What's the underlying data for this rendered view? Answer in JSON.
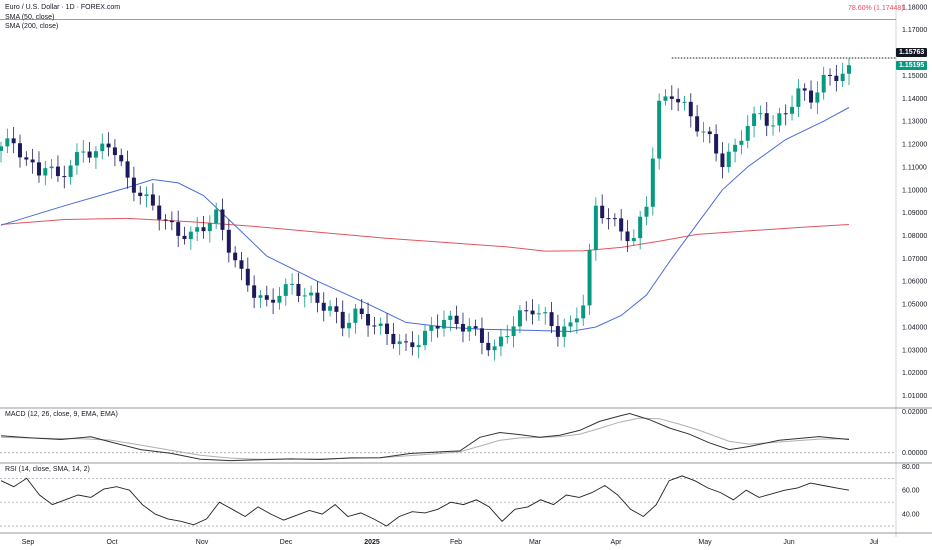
{
  "header": {
    "title": "Euro / U.S. Dollar · 1D · FOREX.com",
    "sma50_label": "SMA (50, close)",
    "sma200_label": "SMA (200, close)",
    "fib_label": "78.60% (1.17448)"
  },
  "price_labels": {
    "last_close": "1.15195",
    "dotted_level": "1.15763"
  },
  "colors": {
    "up": "#089981",
    "down": "#1d1a5c",
    "sma50": "#4a6cd4",
    "sma200": "#e0555f",
    "fib": "#e84a5f",
    "macd": "#333333",
    "signal": "#b0b0b0"
  },
  "chart_data": [
    {
      "type": "candlestick",
      "ylim": [
        1.005,
        1.183
      ],
      "yticks": [
        "1.18000",
        "1.17000",
        "1.16000",
        "1.15000",
        "1.14000",
        "1.13000",
        "1.12000",
        "1.11000",
        "1.10000",
        "1.09000",
        "1.08000",
        "1.07000",
        "1.06000",
        "1.05000",
        "1.04000",
        "1.03000",
        "1.02000",
        "1.01000"
      ],
      "xticks": [
        "Sep",
        "Oct",
        "Nov",
        "Dec",
        "2025",
        "Feb",
        "Mar",
        "Apr",
        "May",
        "Jun",
        "Jul"
      ],
      "close_path": [
        [
          0,
          1.119
        ],
        [
          2,
          1.121
        ],
        [
          4,
          1.112
        ],
        [
          6,
          1.108
        ],
        [
          7,
          1.111
        ],
        [
          9,
          1.105
        ],
        [
          11,
          1.111
        ],
        [
          13,
          1.117
        ],
        [
          15,
          1.116
        ],
        [
          17,
          1.12
        ],
        [
          18,
          1.117
        ],
        [
          20,
          1.104
        ],
        [
          22,
          1.098
        ],
        [
          24,
          1.093
        ],
        [
          26,
          1.086
        ],
        [
          28,
          1.081
        ],
        [
          30,
          1.08
        ],
        [
          32,
          1.084
        ],
        [
          34,
          1.089
        ],
        [
          36,
          1.075
        ],
        [
          38,
          1.063
        ],
        [
          40,
          1.055
        ],
        [
          42,
          1.05
        ],
        [
          44,
          1.055
        ],
        [
          46,
          1.058
        ],
        [
          48,
          1.054
        ],
        [
          50,
          1.051
        ],
        [
          52,
          1.048
        ],
        [
          54,
          1.041
        ],
        [
          56,
          1.046
        ],
        [
          58,
          1.043
        ],
        [
          60,
          1.039
        ],
        [
          62,
          1.035
        ],
        [
          64,
          1.031
        ],
        [
          66,
          1.034
        ],
        [
          68,
          1.039
        ],
        [
          70,
          1.044
        ],
        [
          72,
          1.041
        ],
        [
          74,
          1.04
        ],
        [
          76,
          1.034
        ],
        [
          78,
          1.03
        ],
        [
          80,
          1.038
        ],
        [
          82,
          1.045
        ],
        [
          84,
          1.048
        ],
        [
          86,
          1.044
        ],
        [
          88,
          1.038
        ],
        [
          90,
          1.04
        ],
        [
          92,
          1.051
        ],
        [
          94,
          1.092
        ],
        [
          96,
          1.088
        ],
        [
          98,
          1.082
        ],
        [
          100,
          1.078
        ],
        [
          102,
          1.094
        ],
        [
          104,
          1.137
        ],
        [
          106,
          1.142
        ],
        [
          108,
          1.136
        ],
        [
          110,
          1.128
        ],
        [
          112,
          1.122
        ],
        [
          114,
          1.112
        ],
        [
          116,
          1.118
        ],
        [
          118,
          1.129
        ],
        [
          120,
          1.133
        ],
        [
          122,
          1.128
        ],
        [
          124,
          1.134
        ],
        [
          126,
          1.143
        ],
        [
          128,
          1.14
        ],
        [
          130,
          1.148
        ],
        [
          132,
          1.15
        ],
        [
          134,
          1.152
        ]
      ],
      "dotted_level": 1.15763,
      "fib_level": 1.17448,
      "sma50_path": [
        [
          0,
          1.0845
        ],
        [
          10,
          1.093
        ],
        [
          20,
          1.101
        ],
        [
          24,
          1.1045
        ],
        [
          28,
          1.103
        ],
        [
          32,
          1.0975
        ],
        [
          36,
          1.087
        ],
        [
          42,
          1.071
        ],
        [
          50,
          1.06
        ],
        [
          58,
          1.05
        ],
        [
          64,
          1.042
        ],
        [
          70,
          1.04
        ],
        [
          76,
          1.039
        ],
        [
          84,
          1.0385
        ],
        [
          90,
          1.038
        ],
        [
          94,
          1.04
        ],
        [
          98,
          1.045
        ],
        [
          102,
          1.054
        ],
        [
          106,
          1.07
        ],
        [
          110,
          1.085
        ],
        [
          114,
          1.1
        ],
        [
          118,
          1.11
        ],
        [
          124,
          1.122
        ],
        [
          130,
          1.13
        ],
        [
          134,
          1.136
        ]
      ],
      "sma200_path": [
        [
          0,
          1.0848
        ],
        [
          10,
          1.087
        ],
        [
          20,
          1.0875
        ],
        [
          30,
          1.086
        ],
        [
          40,
          1.084
        ],
        [
          50,
          1.0815
        ],
        [
          60,
          1.079
        ],
        [
          70,
          1.077
        ],
        [
          80,
          1.075
        ],
        [
          86,
          1.0732
        ],
        [
          92,
          1.0733
        ],
        [
          98,
          1.0748
        ],
        [
          104,
          1.0775
        ],
        [
          110,
          1.0805
        ],
        [
          118,
          1.082
        ],
        [
          126,
          1.0835
        ],
        [
          134,
          1.0848
        ]
      ]
    },
    {
      "type": "line",
      "title": "MACD (12, 26, close, 9, EMA, EMA)",
      "ylim": [
        -0.0045,
        0.0212
      ],
      "yticks": [
        "0.02000",
        "0.00000"
      ],
      "series": [
        {
          "values": [
            [
              0,
              0.0082
            ],
            [
              6,
              0.0072
            ],
            [
              12,
              0.0064
            ],
            [
              18,
              0.0077
            ],
            [
              22,
              0.0052
            ],
            [
              28,
              0.0015
            ],
            [
              34,
              -0.0003
            ],
            [
              40,
              -0.0032
            ],
            [
              46,
              -0.0038
            ],
            [
              52,
              -0.0034
            ],
            [
              58,
              -0.003
            ],
            [
              64,
              -0.0033
            ],
            [
              70,
              -0.0025
            ],
            [
              76,
              -0.0024
            ],
            [
              82,
              -0.0004
            ],
            [
              88,
              0.0004
            ],
            [
              92,
              0.0009
            ],
            [
              96,
              0.0075
            ],
            [
              100,
              0.0098
            ],
            [
              104,
              0.0088
            ],
            [
              108,
              0.0075
            ],
            [
              112,
              0.0085
            ],
            [
              116,
              0.0108
            ],
            [
              120,
              0.0152
            ],
            [
              124,
              0.0178
            ],
            [
              126,
              0.019
            ],
            [
              130,
              0.016
            ],
            [
              134,
              0.012
            ],
            [
              138,
              0.009
            ],
            [
              142,
              0.0048
            ],
            [
              146,
              0.0015
            ],
            [
              150,
              0.003
            ],
            [
              156,
              0.006
            ],
            [
              164,
              0.0078
            ],
            [
              170,
              0.0064
            ]
          ]
        },
        {
          "values": [
            [
              0,
              0.0075
            ],
            [
              8,
              0.007
            ],
            [
              16,
              0.0068
            ],
            [
              22,
              0.0061
            ],
            [
              28,
              0.0037
            ],
            [
              34,
              0.0012
            ],
            [
              40,
              -0.0012
            ],
            [
              46,
              -0.0026
            ],
            [
              52,
              -0.0032
            ],
            [
              58,
              -0.0031
            ],
            [
              64,
              -0.003
            ],
            [
              70,
              -0.0027
            ],
            [
              76,
              -0.0024
            ],
            [
              82,
              -0.0014
            ],
            [
              88,
              -0.0004
            ],
            [
              92,
              0.0005
            ],
            [
              96,
              0.0032
            ],
            [
              100,
              0.006
            ],
            [
              104,
              0.0072
            ],
            [
              108,
              0.0074
            ],
            [
              112,
              0.0078
            ],
            [
              116,
              0.009
            ],
            [
              120,
              0.0118
            ],
            [
              124,
              0.0148
            ],
            [
              128,
              0.0168
            ],
            [
              132,
              0.0165
            ],
            [
              136,
              0.0139
            ],
            [
              140,
              0.0108
            ],
            [
              146,
              0.0055
            ],
            [
              150,
              0.0042
            ],
            [
              156,
              0.0052
            ],
            [
              164,
              0.0066
            ],
            [
              170,
              0.0068
            ]
          ]
        }
      ]
    },
    {
      "type": "line",
      "title": "RSI (14, close, SMA, 14, 2)",
      "ylim": [
        25,
        82
      ],
      "yticks": [
        "80.00",
        "60.00",
        "40.00"
      ],
      "bands": [
        70,
        50,
        30
      ],
      "series": [
        {
          "values": [
            [
              0,
              68
            ],
            [
              2,
              63
            ],
            [
              4,
              70
            ],
            [
              6,
              56
            ],
            [
              8,
              48
            ],
            [
              10,
              52
            ],
            [
              12,
              56
            ],
            [
              14,
              54
            ],
            [
              16,
              61
            ],
            [
              18,
              63
            ],
            [
              20,
              60
            ],
            [
              22,
              48
            ],
            [
              24,
              40
            ],
            [
              26,
              36
            ],
            [
              28,
              34
            ],
            [
              30,
              31
            ],
            [
              32,
              36
            ],
            [
              34,
              50
            ],
            [
              36,
              44
            ],
            [
              38,
              38
            ],
            [
              40,
              46
            ],
            [
              42,
              40
            ],
            [
              44,
              35
            ],
            [
              46,
              39
            ],
            [
              48,
              43
            ],
            [
              50,
              40
            ],
            [
              52,
              48
            ],
            [
              54,
              38
            ],
            [
              56,
              41
            ],
            [
              58,
              36
            ],
            [
              60,
              30
            ],
            [
              62,
              38
            ],
            [
              64,
              42
            ],
            [
              66,
              41
            ],
            [
              68,
              44
            ],
            [
              70,
              50
            ],
            [
              72,
              48
            ],
            [
              74,
              52
            ],
            [
              76,
              46
            ],
            [
              78,
              34
            ],
            [
              80,
              44
            ],
            [
              82,
              46
            ],
            [
              84,
              52
            ],
            [
              86,
              48
            ],
            [
              88,
              56
            ],
            [
              90,
              54
            ],
            [
              92,
              58
            ],
            [
              94,
              64
            ],
            [
              96,
              56
            ],
            [
              98,
              44
            ],
            [
              100,
              38
            ],
            [
              102,
              48
            ],
            [
              104,
              68
            ],
            [
              106,
              72
            ],
            [
              108,
              68
            ],
            [
              110,
              62
            ],
            [
              112,
              58
            ],
            [
              114,
              52
            ],
            [
              116,
              60
            ],
            [
              118,
              54
            ],
            [
              120,
              57
            ],
            [
              122,
              60
            ],
            [
              124,
              62
            ],
            [
              126,
              66
            ],
            [
              128,
              64
            ],
            [
              130,
              62
            ],
            [
              132,
              60
            ]
          ]
        }
      ]
    }
  ]
}
